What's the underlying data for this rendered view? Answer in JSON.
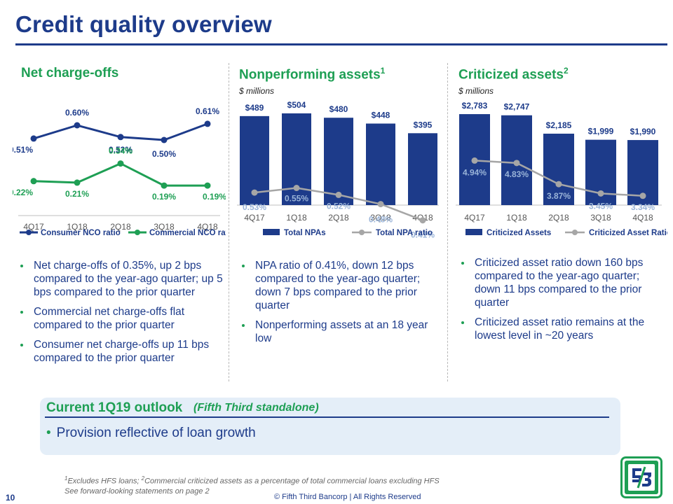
{
  "page": {
    "title": "Credit quality overview",
    "page_number": "10",
    "copyright": "© Fifth Third Bancorp | All Rights Reserved",
    "footnote_line1_marker1": "1",
    "footnote_line1_text1": "Excludes HFS loans; ",
    "footnote_line1_marker2": "2",
    "footnote_line1_text2": "Commercial criticized assets as a percentage of total commercial loans excluding HFS",
    "footnote_line2": "See forward-looking statements on page 2"
  },
  "colors": {
    "navy": "#1d3b8a",
    "green": "#1e9f54",
    "gray_line": "#a6a6a6",
    "panel_bg": "#e4eef8"
  },
  "sections": {
    "nco": {
      "title": "Net charge-offs",
      "bullets": [
        "Net charge-offs of 0.35%, up 2 bps compared to the year-ago quarter; up 5 bps compared to the prior quarter",
        "Commercial net charge-offs flat compared to the prior quarter",
        "Consumer net charge-offs up 11 bps compared to the prior quarter"
      ]
    },
    "npa": {
      "title": "Nonperforming assets",
      "title_sup": "1",
      "subtitle": "$ millions",
      "bullets": [
        "NPA ratio of 0.41%, down 12 bps compared to the year-ago quarter; down 7 bps compared to the prior quarter",
        "Nonperforming assets at an 18 year low"
      ]
    },
    "crit": {
      "title": "Criticized assets",
      "title_sup": "2",
      "subtitle": "$ millions",
      "bullets": [
        "Criticized asset ratio down 160 bps compared to the year-ago quarter; down 11 bps compared to the prior quarter",
        "Criticized asset ratio remains at the lowest level in ~20 years"
      ]
    }
  },
  "outlook": {
    "title": "Current 1Q19 outlook",
    "subtitle": "(Fifth Third standalone)",
    "bullet": "Provision reflective of loan growth"
  },
  "chart_data": [
    {
      "type": "line",
      "categories": [
        "4Q17",
        "1Q18",
        "2Q18",
        "3Q18",
        "4Q18"
      ],
      "series": [
        {
          "name": "Consumer NCO ratio",
          "values": [
            0.51,
            0.6,
            0.52,
            0.5,
            0.61
          ],
          "labels": [
            "0.51%",
            "0.60%",
            "0.52%",
            "0.50%",
            "0.61%"
          ],
          "color": "#1d3b8a"
        },
        {
          "name": "Commercial NCO ratio",
          "values": [
            0.22,
            0.21,
            0.34,
            0.19,
            0.19
          ],
          "labels": [
            "0.22%",
            "0.21%",
            "0.34%",
            "0.19%",
            "0.19%"
          ],
          "color": "#1e9f54"
        }
      ],
      "ylim": [
        0.0,
        0.7
      ],
      "grid": false,
      "legend": "bottom"
    },
    {
      "type": "bar",
      "categories": [
        "4Q17",
        "1Q18",
        "2Q18",
        "3Q18",
        "4Q18"
      ],
      "series": [
        {
          "name": "Total NPAs",
          "kind": "bar",
          "values": [
            489,
            504,
            480,
            448,
            395
          ],
          "labels": [
            "$489",
            "$504",
            "$480",
            "$448",
            "$395"
          ],
          "color": "#1d3b8a"
        },
        {
          "name": "Total NPA ratio",
          "kind": "line",
          "values": [
            0.53,
            0.55,
            0.52,
            0.48,
            0.41
          ],
          "labels": [
            "0.53%",
            "0.55%",
            "0.52%",
            "0.48%",
            "0.41%"
          ],
          "color": "#a6a6a6"
        }
      ],
      "grid": false,
      "legend": "bottom"
    },
    {
      "type": "bar",
      "categories": [
        "4Q17",
        "1Q18",
        "2Q18",
        "3Q18",
        "4Q18"
      ],
      "series": [
        {
          "name": "Criticized Assets",
          "kind": "bar",
          "values": [
            2783,
            2747,
            2185,
            1999,
            1990
          ],
          "labels": [
            "$2,783",
            "$2,747",
            "$2,185",
            "$1,999",
            "$1,990"
          ],
          "color": "#1d3b8a"
        },
        {
          "name": "Criticized Asset Ratio",
          "kind": "line",
          "values": [
            4.94,
            4.83,
            3.87,
            3.45,
            3.34
          ],
          "labels": [
            "4.94%",
            "4.83%",
            "3.87%",
            "3.45%",
            "3.34%"
          ],
          "color": "#a6a6a6"
        }
      ],
      "grid": false,
      "legend": "bottom"
    }
  ]
}
